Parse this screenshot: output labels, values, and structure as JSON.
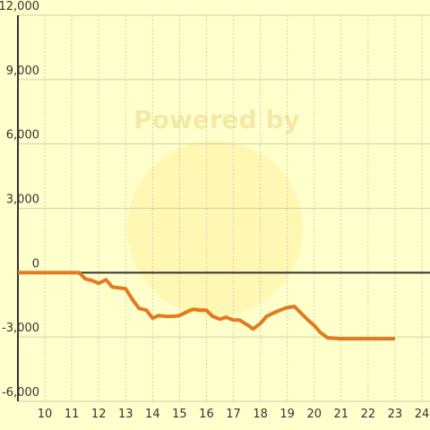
{
  "chart_data": {
    "type": "line",
    "watermark": "Powered by",
    "x": [
      9,
      11.27,
      11.5,
      11.77,
      12,
      12.27,
      12.5,
      12.77,
      13,
      13.27,
      13.5,
      13.77,
      14,
      14.23,
      14.5,
      14.77,
      15,
      15.27,
      15.5,
      15.77,
      16,
      16.23,
      16.5,
      16.73,
      17,
      17.23,
      17.5,
      17.73,
      18,
      18.23,
      18.5,
      18.73,
      19,
      19.27,
      19.5,
      19.77,
      20,
      20.23,
      20.5,
      21,
      23
    ],
    "series": [
      {
        "color": "#e07b20",
        "values": [
          0,
          0,
          -290,
          -375,
          -500,
          -330,
          -670,
          -710,
          -750,
          -1290,
          -1670,
          -1750,
          -2125,
          -2000,
          -2040,
          -2040,
          -2000,
          -1830,
          -1710,
          -1750,
          -1750,
          -2040,
          -2170,
          -2080,
          -2210,
          -2210,
          -2420,
          -2625,
          -2375,
          -2040,
          -1875,
          -1750,
          -1625,
          -1580,
          -1875,
          -2210,
          -2460,
          -2790,
          -3040,
          -3080,
          -3080
        ]
      }
    ],
    "xlim": [
      9,
      24.3
    ],
    "xticks": [
      10,
      11,
      12,
      13,
      14,
      15,
      16,
      17,
      18,
      19,
      20,
      21,
      22,
      23,
      24
    ],
    "ylim": [
      -6000,
      12000
    ],
    "yticks": [
      {
        "value": -6000,
        "label": "-6,000"
      },
      {
        "value": -3000,
        "label": "-3,000"
      },
      0,
      {
        "value": 3000,
        "label": "3,000"
      },
      {
        "value": 6000,
        "label": "6,000"
      },
      {
        "value": 9000,
        "label": "9,000"
      },
      {
        "value": 12000,
        "label": "12,000"
      }
    ],
    "grid": true
  }
}
